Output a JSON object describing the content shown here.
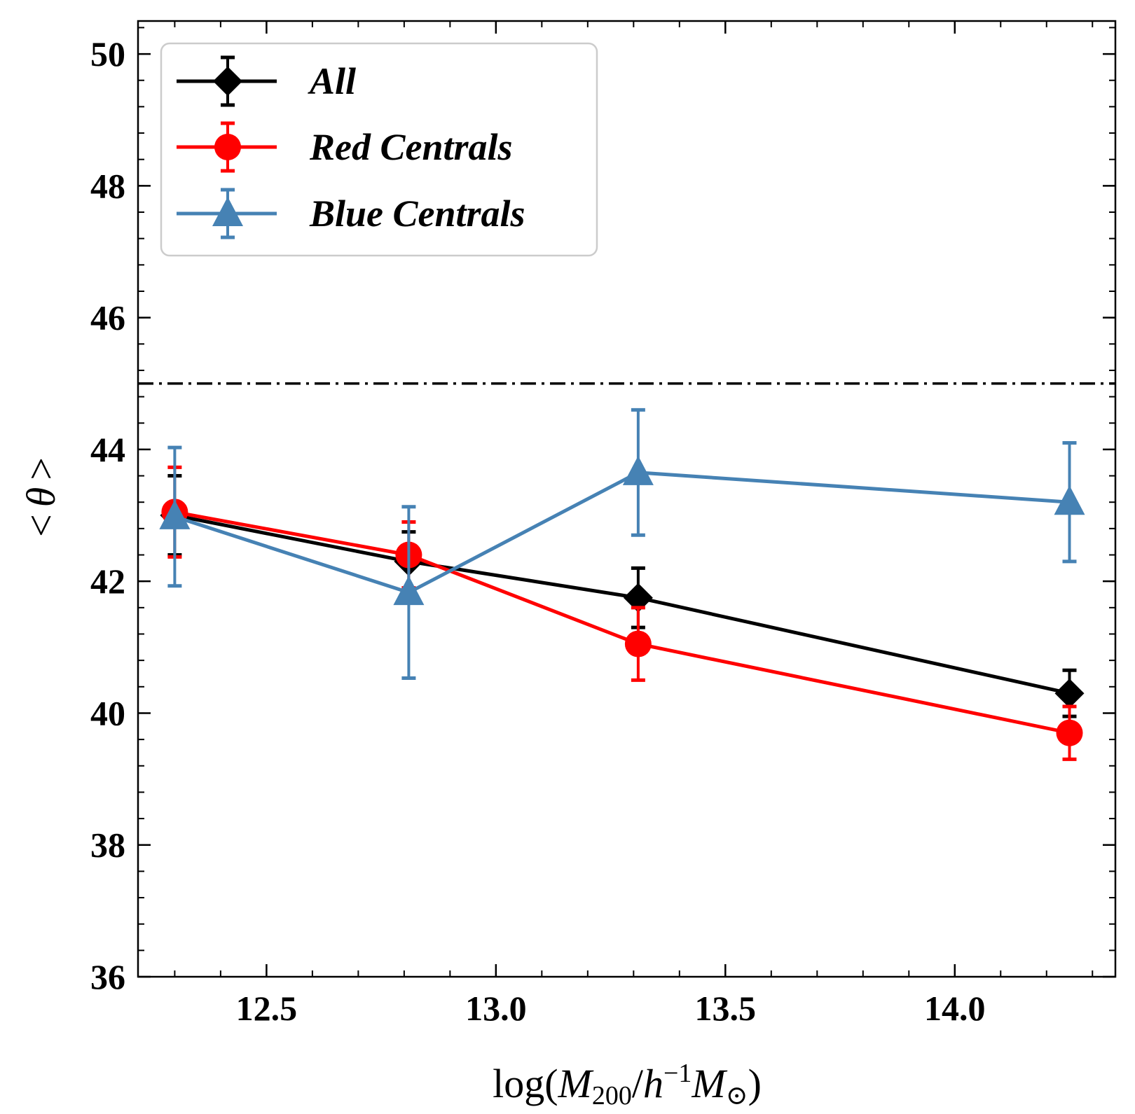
{
  "chart_data": {
    "type": "line",
    "title": "",
    "x": [
      12.3,
      12.81,
      13.31,
      14.25
    ],
    "xlim": [
      12.22,
      14.35
    ],
    "ylim": [
      36,
      50.5
    ],
    "xticks": [
      12.5,
      13.0,
      13.5,
      14.0
    ],
    "xtick_labels": [
      "12.5",
      "13.0",
      "13.5",
      "14.0"
    ],
    "yticks": [
      36,
      38,
      40,
      42,
      44,
      46,
      48,
      50
    ],
    "ytick_labels": [
      "36",
      "38",
      "40",
      "42",
      "44",
      "46",
      "48",
      "50"
    ],
    "xlabel": {
      "prefix": "log(",
      "var1": "M",
      "sub1": "200",
      "slash": "/",
      "var2": "h",
      "sup": "−1",
      "var3": "M",
      "sub3": "⊙",
      "suffix": ")"
    },
    "ylabel": {
      "left": "<",
      "var": "θ",
      "right": ">"
    },
    "reference_line": {
      "y": 45,
      "style": "dash-dot",
      "color": "#000000"
    },
    "legend_position": "top-left",
    "series": [
      {
        "name": "All",
        "color": "#000000",
        "marker": "diamond",
        "values": [
          43.0,
          42.3,
          41.75,
          40.3
        ],
        "err": [
          0.6,
          0.45,
          0.45,
          0.35
        ]
      },
      {
        "name": "Red Centrals",
        "color": "#ff0000",
        "marker": "circle",
        "values": [
          43.05,
          42.4,
          41.05,
          39.7
        ],
        "err": [
          0.68,
          0.5,
          0.55,
          0.4
        ]
      },
      {
        "name": "Blue Centrals",
        "color": "#4682b4",
        "marker": "triangle",
        "values": [
          42.98,
          41.83,
          43.65,
          43.2
        ],
        "err": [
          1.05,
          1.3,
          0.95,
          0.9
        ]
      }
    ]
  }
}
